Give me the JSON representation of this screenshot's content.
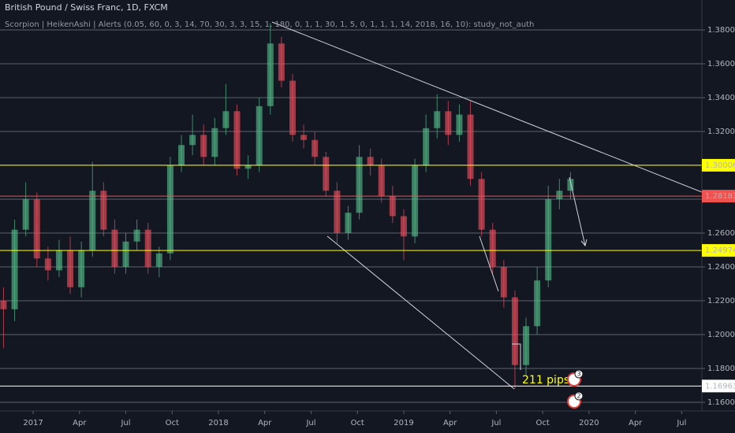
{
  "chart_data": {
    "type": "candlestick",
    "title": "British Pound / Swiss Franc, 1D, FXCM",
    "subtitle": "Scorpion | HeikenAshi | Alerts (0.05, 60, 0, 3, 14, 70, 30, 3, 3, 15, 1, 180, 0, 1, 1, 30, 1, 5, 0, 1, 1, 1, 14, 2018, 16, 10): study_not_auth",
    "x": [
      2016.84,
      2016.9,
      2016.96,
      2017.02,
      2017.08,
      2017.14,
      2017.2,
      2017.26,
      2017.32,
      2017.38,
      2017.44,
      2017.5,
      2017.56,
      2017.62,
      2017.68,
      2017.74,
      2017.8,
      2017.86,
      2017.92,
      2017.98,
      2018.04,
      2018.1,
      2018.16,
      2018.22,
      2018.28,
      2018.34,
      2018.4,
      2018.46,
      2018.52,
      2018.58,
      2018.64,
      2018.7,
      2018.76,
      2018.82,
      2018.88,
      2018.94,
      2019.0,
      2019.06,
      2019.12,
      2019.18,
      2019.24,
      2019.3,
      2019.36,
      2019.42,
      2019.48,
      2019.54,
      2019.6,
      2019.66,
      2019.72,
      2019.78,
      2019.84,
      2019.9
    ],
    "open": [
      1.22,
      1.215,
      1.262,
      1.28,
      1.245,
      1.238,
      1.25,
      1.228,
      1.25,
      1.285,
      1.262,
      1.24,
      1.255,
      1.262,
      1.24,
      1.248,
      1.3,
      1.312,
      1.318,
      1.305,
      1.322,
      1.332,
      1.298,
      1.3,
      1.335,
      1.372,
      1.35,
      1.318,
      1.315,
      1.305,
      1.285,
      1.26,
      1.272,
      1.305,
      1.3,
      1.282,
      1.27,
      1.258,
      1.3,
      1.322,
      1.332,
      1.318,
      1.33,
      1.292,
      1.262,
      1.24,
      1.222,
      1.182,
      1.205,
      1.232,
      1.28,
      1.285
    ],
    "high": [
      1.228,
      1.268,
      1.29,
      1.284,
      1.252,
      1.256,
      1.258,
      1.255,
      1.302,
      1.29,
      1.268,
      1.26,
      1.268,
      1.266,
      1.252,
      1.305,
      1.318,
      1.33,
      1.324,
      1.328,
      1.348,
      1.336,
      1.306,
      1.34,
      1.384,
      1.376,
      1.354,
      1.324,
      1.32,
      1.308,
      1.29,
      1.276,
      1.312,
      1.31,
      1.304,
      1.288,
      1.274,
      1.304,
      1.33,
      1.342,
      1.338,
      1.336,
      1.338,
      1.296,
      1.266,
      1.244,
      1.226,
      1.21,
      1.24,
      1.288,
      1.292,
      1.296
    ],
    "low": [
      1.192,
      1.208,
      1.258,
      1.24,
      1.232,
      1.234,
      1.224,
      1.222,
      1.246,
      1.258,
      1.236,
      1.236,
      1.25,
      1.236,
      1.234,
      1.244,
      1.296,
      1.306,
      1.3,
      1.3,
      1.318,
      1.294,
      1.292,
      1.296,
      1.33,
      1.346,
      1.314,
      1.31,
      1.3,
      1.282,
      1.254,
      1.256,
      1.268,
      1.294,
      1.278,
      1.266,
      1.244,
      1.254,
      1.296,
      1.316,
      1.312,
      1.314,
      1.288,
      1.258,
      1.236,
      1.216,
      1.168,
      1.176,
      1.2,
      1.228,
      1.274,
      1.28
    ],
    "close": [
      1.215,
      1.262,
      1.28,
      1.245,
      1.238,
      1.25,
      1.228,
      1.25,
      1.285,
      1.262,
      1.24,
      1.255,
      1.262,
      1.24,
      1.248,
      1.3,
      1.312,
      1.318,
      1.305,
      1.322,
      1.332,
      1.298,
      1.3,
      1.335,
      1.372,
      1.35,
      1.318,
      1.315,
      1.305,
      1.285,
      1.26,
      1.272,
      1.305,
      1.3,
      1.282,
      1.27,
      1.258,
      1.3,
      1.322,
      1.332,
      1.318,
      1.33,
      1.292,
      1.262,
      1.24,
      1.222,
      1.182,
      1.205,
      1.232,
      1.28,
      1.285,
      1.292
    ],
    "up_color": "#53b987",
    "down_color": "#eb4d5c",
    "xlim": [
      2016.821,
      2020.609
    ],
    "ylim": [
      1.1549,
      1.3977
    ],
    "xticks": [
      {
        "value": 2017,
        "label": "2017"
      },
      {
        "value": 2017.25,
        "label": "Apr"
      },
      {
        "value": 2017.5,
        "label": "Jul"
      },
      {
        "value": 2017.75,
        "label": "Oct"
      },
      {
        "value": 2018,
        "label": "2018"
      },
      {
        "value": 2018.25,
        "label": "Apr"
      },
      {
        "value": 2018.5,
        "label": "Jul"
      },
      {
        "value": 2018.75,
        "label": "Oct"
      },
      {
        "value": 2019,
        "label": "2019"
      },
      {
        "value": 2019.25,
        "label": "Apr"
      },
      {
        "value": 2019.5,
        "label": "Jul"
      },
      {
        "value": 2019.75,
        "label": "Oct"
      },
      {
        "value": 2020,
        "label": "2020"
      },
      {
        "value": 2020.25,
        "label": "Apr"
      },
      {
        "value": 2020.5,
        "label": "Jul"
      }
    ],
    "yticks": [
      {
        "value": 1.16,
        "label": "1.16000"
      },
      {
        "value": 1.18,
        "label": "1.18000"
      },
      {
        "value": 1.2,
        "label": "1.20000"
      },
      {
        "value": 1.22,
        "label": "1.22000"
      },
      {
        "value": 1.24,
        "label": "1.24000"
      },
      {
        "value": 1.26,
        "label": "1.26000"
      },
      {
        "value": 1.28,
        "label": "1.28000"
      },
      {
        "value": 1.3,
        "label": "1.30000"
      },
      {
        "value": 1.32,
        "label": "1.32000"
      },
      {
        "value": 1.34,
        "label": "1.34000"
      },
      {
        "value": 1.36,
        "label": "1.36000"
      },
      {
        "value": 1.38,
        "label": "1.38000"
      }
    ],
    "grid": true,
    "price_lines": [
      {
        "value": 1.30006,
        "color": "#ffff00"
      },
      {
        "value": 1.24974,
        "color": "#ffff00"
      },
      {
        "value": 1.28183,
        "color": "#ef5350"
      },
      {
        "value": 1.16963,
        "color": "#ffffff"
      }
    ],
    "annotation": "211 pips",
    "event_counts": [
      3,
      2
    ]
  }
}
